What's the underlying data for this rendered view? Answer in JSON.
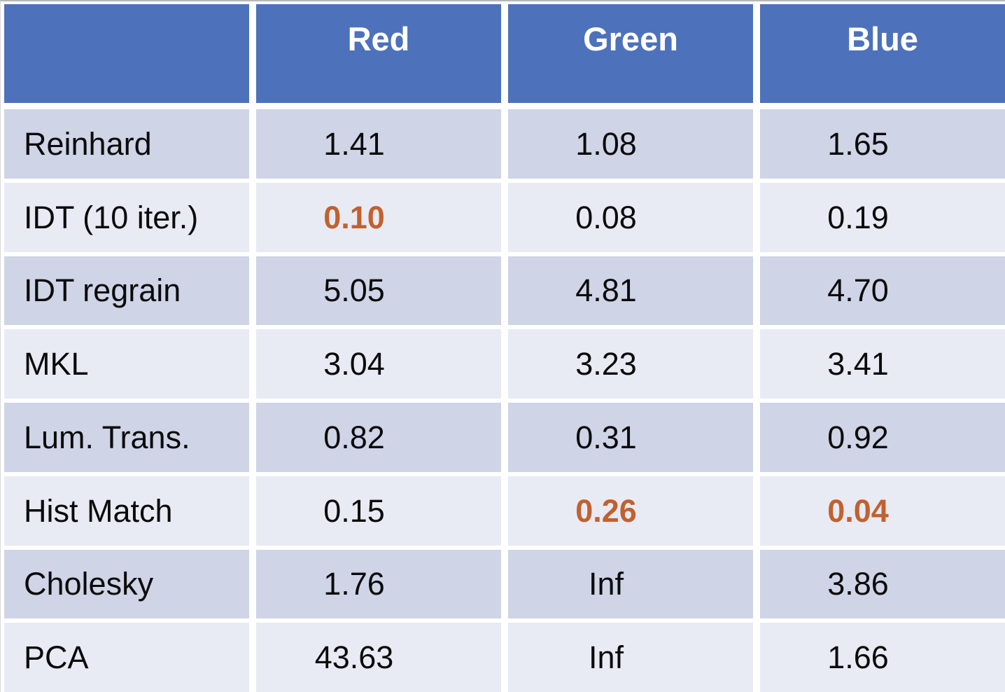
{
  "colors": {
    "header_bg": "#4D72BB",
    "header_text": "#FFFFFF",
    "row_band_dark": "#CFD4E6",
    "row_band_light": "#E9EBF4",
    "body_text": "#0B0B0C",
    "highlight": "#C2612E",
    "gridline": "#FFFFFF"
  },
  "table": {
    "columns": [
      "",
      "Red",
      "Green",
      "Blue"
    ],
    "rows": [
      {
        "label": "Reinhard",
        "values": [
          {
            "text": "1.41",
            "highlight": false
          },
          {
            "text": "1.08",
            "highlight": false
          },
          {
            "text": "1.65",
            "highlight": false
          }
        ]
      },
      {
        "label": "IDT (10 iter.)",
        "values": [
          {
            "text": "0.10",
            "highlight": true
          },
          {
            "text": "0.08",
            "highlight": false
          },
          {
            "text": "0.19",
            "highlight": false
          }
        ]
      },
      {
        "label": "IDT regrain",
        "values": [
          {
            "text": "5.05",
            "highlight": false
          },
          {
            "text": "4.81",
            "highlight": false
          },
          {
            "text": "4.70",
            "highlight": false
          }
        ]
      },
      {
        "label": "MKL",
        "values": [
          {
            "text": "3.04",
            "highlight": false
          },
          {
            "text": "3.23",
            "highlight": false
          },
          {
            "text": "3.41",
            "highlight": false
          }
        ]
      },
      {
        "label": "Lum. Trans.",
        "values": [
          {
            "text": "0.82",
            "highlight": false
          },
          {
            "text": "0.31",
            "highlight": false
          },
          {
            "text": "0.92",
            "highlight": false
          }
        ]
      },
      {
        "label": "Hist Match",
        "values": [
          {
            "text": "0.15",
            "highlight": false
          },
          {
            "text": "0.26",
            "highlight": true
          },
          {
            "text": "0.04",
            "highlight": true
          }
        ]
      },
      {
        "label": "Cholesky",
        "values": [
          {
            "text": "1.76",
            "highlight": false
          },
          {
            "text": "Inf",
            "highlight": false
          },
          {
            "text": "3.86",
            "highlight": false
          }
        ]
      },
      {
        "label": "PCA",
        "values": [
          {
            "text": "43.63",
            "highlight": false
          },
          {
            "text": "Inf",
            "highlight": false
          },
          {
            "text": "1.66",
            "highlight": false
          }
        ]
      }
    ]
  },
  "chart_data": {
    "type": "table",
    "title": "",
    "categories": [
      "Red",
      "Green",
      "Blue"
    ],
    "series": [
      {
        "name": "Reinhard",
        "values": [
          1.41,
          1.08,
          1.65
        ]
      },
      {
        "name": "IDT (10 iter.)",
        "values": [
          0.1,
          0.08,
          0.19
        ]
      },
      {
        "name": "IDT regrain",
        "values": [
          5.05,
          4.81,
          4.7
        ]
      },
      {
        "name": "MKL",
        "values": [
          3.04,
          3.23,
          3.41
        ]
      },
      {
        "name": "Lum. Trans.",
        "values": [
          0.82,
          0.31,
          0.92
        ]
      },
      {
        "name": "Hist Match",
        "values": [
          0.15,
          0.26,
          0.04
        ]
      },
      {
        "name": "Cholesky",
        "values": [
          1.76,
          "Inf",
          3.86
        ]
      },
      {
        "name": "PCA",
        "values": [
          43.63,
          "Inf",
          1.66
        ]
      }
    ],
    "highlighted_cells": [
      {
        "row": "IDT (10 iter.)",
        "column": "Red",
        "value": 0.1
      },
      {
        "row": "Hist Match",
        "column": "Green",
        "value": 0.26
      },
      {
        "row": "Hist Match",
        "column": "Blue",
        "value": 0.04
      }
    ],
    "legend_position": "none",
    "grid": "white-separators"
  }
}
